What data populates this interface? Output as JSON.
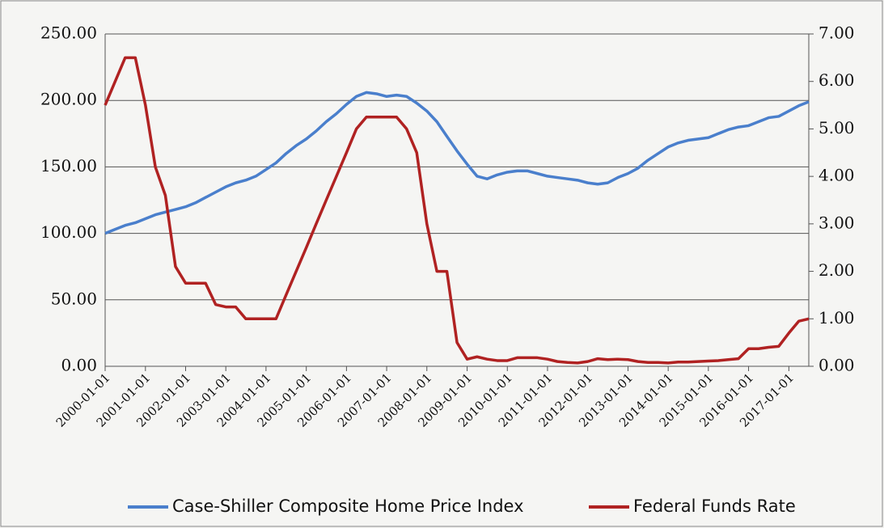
{
  "chart_data": {
    "type": "line",
    "x": [
      "2000-01-01",
      "2000-04-01",
      "2000-07-01",
      "2000-10-01",
      "2001-01-01",
      "2001-04-01",
      "2001-07-01",
      "2001-10-01",
      "2002-01-01",
      "2002-04-01",
      "2002-07-01",
      "2002-10-01",
      "2003-01-01",
      "2003-04-01",
      "2003-07-01",
      "2003-10-01",
      "2004-01-01",
      "2004-04-01",
      "2004-07-01",
      "2004-10-01",
      "2005-01-01",
      "2005-04-01",
      "2005-07-01",
      "2005-10-01",
      "2006-01-01",
      "2006-04-01",
      "2006-07-01",
      "2006-10-01",
      "2007-01-01",
      "2007-04-01",
      "2007-07-01",
      "2007-10-01",
      "2008-01-01",
      "2008-04-01",
      "2008-07-01",
      "2008-10-01",
      "2009-01-01",
      "2009-04-01",
      "2009-07-01",
      "2009-10-01",
      "2010-01-01",
      "2010-04-01",
      "2010-07-01",
      "2010-10-01",
      "2011-01-01",
      "2011-04-01",
      "2011-07-01",
      "2011-10-01",
      "2012-01-01",
      "2012-04-01",
      "2012-07-01",
      "2012-10-01",
      "2013-01-01",
      "2013-04-01",
      "2013-07-01",
      "2013-10-01",
      "2014-01-01",
      "2014-04-01",
      "2014-07-01",
      "2014-10-01",
      "2015-01-01",
      "2015-04-01",
      "2015-07-01",
      "2015-10-01",
      "2016-01-01",
      "2016-04-01",
      "2016-07-01",
      "2016-10-01",
      "2017-01-01",
      "2017-04-01",
      "2017-07-01"
    ],
    "series": [
      {
        "name": "Case-Shiller Composite Home Price Index",
        "color": "#4a7fcc",
        "values": [
          100,
          103,
          106,
          108,
          111,
          114,
          116,
          118,
          120,
          123,
          127,
          131,
          135,
          138,
          140,
          143,
          148,
          153,
          160,
          166,
          171,
          177,
          184,
          190,
          197,
          203,
          206,
          205,
          203,
          204,
          203,
          198,
          192,
          184,
          173,
          162,
          152,
          143,
          141,
          144,
          146,
          147,
          147,
          145,
          143,
          142,
          141,
          140,
          138,
          137,
          138,
          142,
          145,
          149,
          155,
          160,
          165,
          168,
          170,
          171,
          172,
          175,
          178,
          180,
          181,
          184,
          187,
          188,
          192,
          196,
          199
        ]
      },
      {
        "name": "Federal Funds Rate",
        "color": "#b02222",
        "axis": "y2",
        "values": [
          5.5,
          6.0,
          6.5,
          6.5,
          5.5,
          4.2,
          3.6,
          2.1,
          1.75,
          1.75,
          1.75,
          1.3,
          1.25,
          1.25,
          1.0,
          1.0,
          1.0,
          1.0,
          1.5,
          2.0,
          2.5,
          3.0,
          3.5,
          4.0,
          4.5,
          5.0,
          5.25,
          5.25,
          5.25,
          5.25,
          5.0,
          4.5,
          3.0,
          2.0,
          2.0,
          0.5,
          0.15,
          0.2,
          0.15,
          0.12,
          0.12,
          0.18,
          0.18,
          0.18,
          0.15,
          0.1,
          0.08,
          0.07,
          0.1,
          0.16,
          0.14,
          0.15,
          0.14,
          0.1,
          0.08,
          0.08,
          0.07,
          0.09,
          0.09,
          0.1,
          0.11,
          0.12,
          0.14,
          0.16,
          0.37,
          0.37,
          0.4,
          0.42,
          0.7,
          0.95,
          1.0
        ]
      }
    ],
    "xlim": [
      "2000-01-01",
      "2017-07-01"
    ],
    "xticks": [
      "2000-01-01",
      "2001-01-01",
      "2002-01-01",
      "2003-01-01",
      "2004-01-01",
      "2005-01-01",
      "2006-01-01",
      "2007-01-01",
      "2008-01-01",
      "2009-01-01",
      "2010-01-01",
      "2011-01-01",
      "2012-01-01",
      "2013-01-01",
      "2014-01-01",
      "2015-01-01",
      "2016-01-01",
      "2017-01-01"
    ],
    "ylim": [
      0,
      250
    ],
    "yticks": [
      {
        "value": 0,
        "label": "0.00"
      },
      {
        "value": 50,
        "label": "50.00"
      },
      {
        "value": 100,
        "label": "100.00"
      },
      {
        "value": 150,
        "label": "150.00"
      },
      {
        "value": 200,
        "label": "200.00"
      },
      {
        "value": 250,
        "label": "250.00"
      }
    ],
    "y2lim": [
      0,
      7
    ],
    "y2ticks": [
      {
        "value": 0,
        "label": "0.00"
      },
      {
        "value": 1,
        "label": "1.00"
      },
      {
        "value": 2,
        "label": "2.00"
      },
      {
        "value": 3,
        "label": "3.00"
      },
      {
        "value": 4,
        "label": "4.00"
      },
      {
        "value": 5,
        "label": "5.00"
      },
      {
        "value": 6,
        "label": "6.00"
      },
      {
        "value": 7,
        "label": "7.00"
      }
    ],
    "grid": true,
    "legend": "bottom"
  }
}
